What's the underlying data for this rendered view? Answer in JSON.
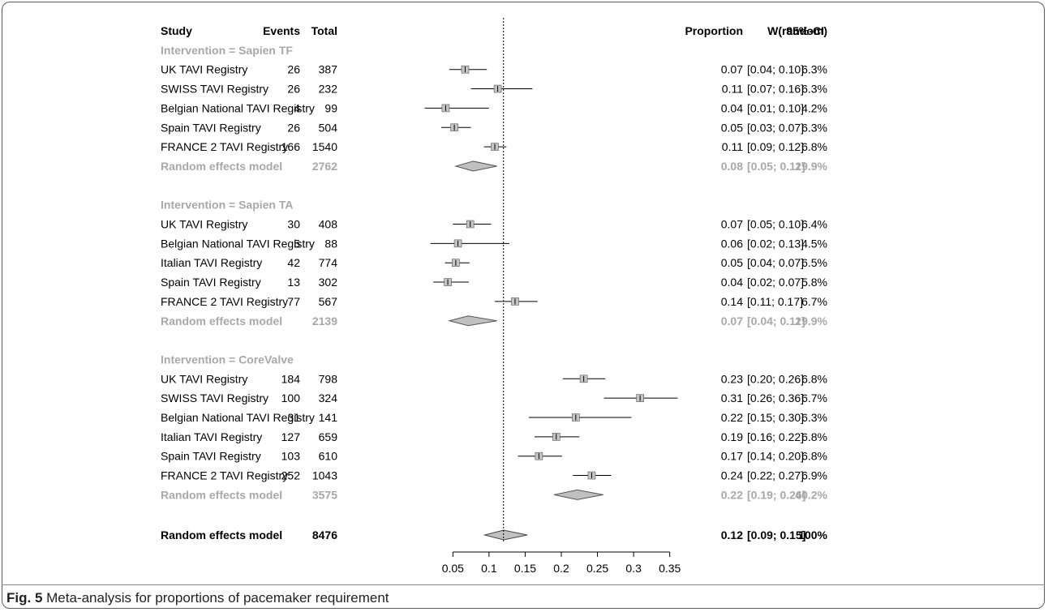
{
  "caption": {
    "label": "Fig. 5",
    "text": "Meta-analysis for proportions of pacemaker requirement"
  },
  "chart_data": {
    "type": "forest",
    "headers": {
      "study": "Study",
      "events": "Events",
      "total": "Total",
      "proportion": "Proportion",
      "ci": "95%-CI",
      "weight": "W(random)"
    },
    "xlim": [
      0.03,
      0.36
    ],
    "xticks": [
      0.05,
      0.1,
      0.15,
      0.2,
      0.25,
      0.3,
      0.35
    ],
    "xtick_labels": [
      "0.05",
      "0.1",
      "0.15",
      "0.2",
      "0.25",
      "0.3",
      "0.35"
    ],
    "reference_line": 0.12,
    "groups": [
      {
        "title": "Intervention = Sapien TF",
        "studies": [
          {
            "study": "UK TAVI Registry",
            "events": "26",
            "total": "387",
            "est": 0.067,
            "lo": 0.045,
            "hi": 0.097,
            "est_text": "0.07",
            "ci_text": "[0.04; 0.10]",
            "weight": "6.3%"
          },
          {
            "study": "SWISS TAVI Registry",
            "events": "26",
            "total": "232",
            "est": 0.112,
            "lo": 0.075,
            "hi": 0.16,
            "est_text": "0.11",
            "ci_text": "[0.07; 0.16]",
            "weight": "6.3%"
          },
          {
            "study": "Belgian National TAVI Registry",
            "events": "4",
            "total": "99",
            "est": 0.04,
            "lo": 0.011,
            "hi": 0.1,
            "est_text": "0.04",
            "ci_text": "[0.01; 0.10]",
            "weight": "4.2%"
          },
          {
            "study": "Spain TAVI Registry",
            "events": "26",
            "total": "504",
            "est": 0.052,
            "lo": 0.034,
            "hi": 0.075,
            "est_text": "0.05",
            "ci_text": "[0.03; 0.07]",
            "weight": "6.3%"
          },
          {
            "study": "FRANCE 2 TAVI Registry",
            "events": "166",
            "total": "1540",
            "est": 0.108,
            "lo": 0.093,
            "hi": 0.124,
            "est_text": "0.11",
            "ci_text": "[0.09; 0.12]",
            "weight": "6.8%"
          }
        ],
        "pooled": {
          "label": "Random effects model",
          "total": "2762",
          "est": 0.078,
          "lo": 0.054,
          "hi": 0.111,
          "est_text": "0.08",
          "ci_text": "[0.05; 0.11]",
          "weight": "29.9%"
        }
      },
      {
        "title": "Intervention = Sapien TA",
        "studies": [
          {
            "study": "UK TAVI Registry",
            "events": "30",
            "total": "408",
            "est": 0.074,
            "lo": 0.05,
            "hi": 0.103,
            "est_text": "0.07",
            "ci_text": "[0.05; 0.10]",
            "weight": "6.4%"
          },
          {
            "study": "Belgian National TAVI Registry",
            "events": "5",
            "total": "88",
            "est": 0.057,
            "lo": 0.019,
            "hi": 0.128,
            "est_text": "0.06",
            "ci_text": "[0.02; 0.13]",
            "weight": "4.5%"
          },
          {
            "study": "Italian TAVI Registry",
            "events": "42",
            "total": "774",
            "est": 0.054,
            "lo": 0.039,
            "hi": 0.073,
            "est_text": "0.05",
            "ci_text": "[0.04; 0.07]",
            "weight": "6.5%"
          },
          {
            "study": "Spain TAVI Registry",
            "events": "13",
            "total": "302",
            "est": 0.043,
            "lo": 0.023,
            "hi": 0.072,
            "est_text": "0.04",
            "ci_text": "[0.02; 0.07]",
            "weight": "5.8%"
          },
          {
            "study": "FRANCE 2 TAVI Registry",
            "events": "77",
            "total": "567",
            "est": 0.136,
            "lo": 0.108,
            "hi": 0.167,
            "est_text": "0.14",
            "ci_text": "[0.11; 0.17]",
            "weight": "6.7%"
          }
        ],
        "pooled": {
          "label": "Random effects model",
          "total": "2139",
          "est": 0.071,
          "lo": 0.045,
          "hi": 0.111,
          "est_text": "0.07",
          "ci_text": "[0.04; 0.11]",
          "weight": "29.9%"
        }
      },
      {
        "title": "Intervention = CoreValve",
        "studies": [
          {
            "study": "UK TAVI Registry",
            "events": "184",
            "total": "798",
            "est": 0.231,
            "lo": 0.202,
            "hi": 0.261,
            "est_text": "0.23",
            "ci_text": "[0.20; 0.26]",
            "weight": "6.8%"
          },
          {
            "study": "SWISS TAVI Registry",
            "events": "100",
            "total": "324",
            "est": 0.309,
            "lo": 0.259,
            "hi": 0.361,
            "est_text": "0.31",
            "ci_text": "[0.26; 0.36]",
            "weight": "6.7%"
          },
          {
            "study": "Belgian National TAVI Registry",
            "events": "31",
            "total": "141",
            "est": 0.22,
            "lo": 0.155,
            "hi": 0.297,
            "est_text": "0.22",
            "ci_text": "[0.15; 0.30]",
            "weight": "6.3%"
          },
          {
            "study": "Italian TAVI Registry",
            "events": "127",
            "total": "659",
            "est": 0.193,
            "lo": 0.163,
            "hi": 0.225,
            "est_text": "0.19",
            "ci_text": "[0.16; 0.22]",
            "weight": "6.8%"
          },
          {
            "study": "Spain TAVI Registry",
            "events": "103",
            "total": "610",
            "est": 0.169,
            "lo": 0.14,
            "hi": 0.201,
            "est_text": "0.17",
            "ci_text": "[0.14; 0.20]",
            "weight": "6.8%"
          },
          {
            "study": "FRANCE 2 TAVI Registry",
            "events": "252",
            "total": "1043",
            "est": 0.242,
            "lo": 0.216,
            "hi": 0.269,
            "est_text": "0.24",
            "ci_text": "[0.22; 0.27]",
            "weight": "6.9%"
          }
        ],
        "pooled": {
          "label": "Random effects model",
          "total": "3575",
          "est": 0.222,
          "lo": 0.19,
          "hi": 0.258,
          "est_text": "0.22",
          "ci_text": "[0.19; 0.26]",
          "weight": "40.2%"
        }
      }
    ],
    "overall": {
      "label": "Random effects model",
      "total": "8476",
      "est": 0.12,
      "lo": 0.094,
      "hi": 0.153,
      "est_text": "0.12",
      "ci_text": "[0.09; 0.15]",
      "weight": "100%"
    }
  }
}
